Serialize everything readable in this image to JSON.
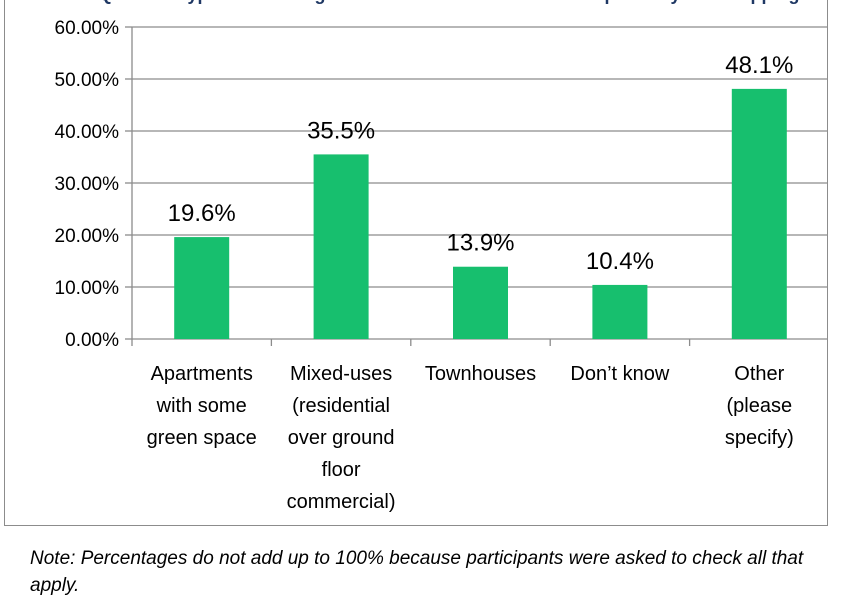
{
  "chart_data": {
    "type": "bar",
    "title": "Q. Which types of housing would be welcome in a redeveloped Holyoke Shopping Center",
    "categories": [
      [
        "Apartments",
        "with some",
        "green space"
      ],
      [
        "Mixed-uses",
        "(residential",
        "over ground",
        "floor",
        "commercial)"
      ],
      [
        "Townhouses"
      ],
      [
        "Don’t know"
      ],
      [
        "Other",
        "(please",
        "specify)"
      ]
    ],
    "values": [
      19.6,
      35.5,
      13.9,
      10.4,
      48.1
    ],
    "data_labels": [
      "19.6%",
      "35.5%",
      "13.9%",
      "10.4%",
      "48.1%"
    ],
    "yticks": [
      "0.00%",
      "10.00%",
      "20.00%",
      "30.00%",
      "40.00%",
      "50.00%",
      "60.00%"
    ],
    "ylim": [
      0,
      60
    ],
    "grid": true,
    "bar_color": "#17bf6e"
  },
  "note": "Note: Percentages do not add up to 100% because participants were asked to check all that apply."
}
